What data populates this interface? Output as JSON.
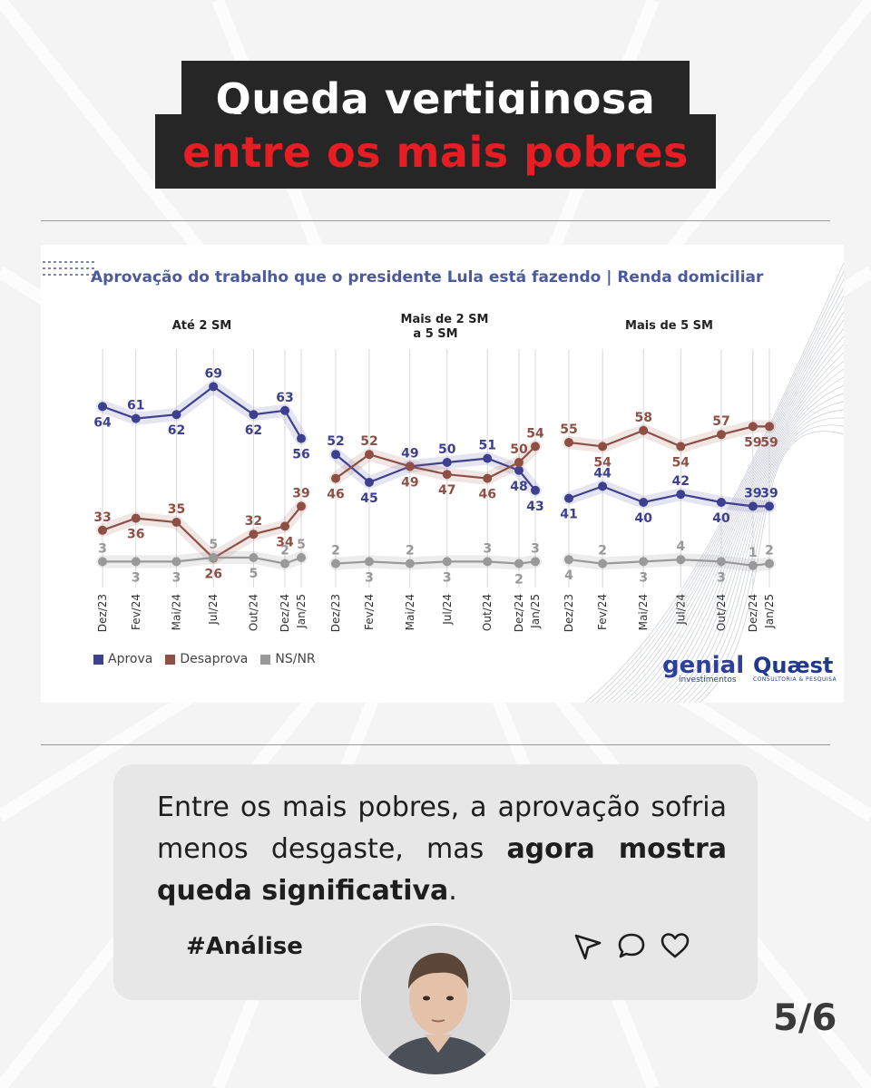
{
  "header": {
    "line1": "Queda vertiginosa",
    "line2": "entre os mais pobres"
  },
  "chart_title": "Aprovação do trabalho que o presidente Lula está fazendo | Renda domiciliar",
  "legend": [
    {
      "label": "Aprova",
      "color": "#3d3f8f"
    },
    {
      "label": "Desaprova",
      "color": "#8e4f45"
    },
    {
      "label": "NS/NR",
      "color": "#999999"
    }
  ],
  "chart_data": [
    {
      "type": "line",
      "title": "Até 2 SM",
      "x": [
        "Dez/23",
        "Fev/24",
        "Mai/24",
        "Jul/24",
        "Out/24",
        "Dez/24",
        "Jan/25"
      ],
      "series": [
        {
          "name": "Aprova",
          "values": [
            64,
            61,
            62,
            69,
            62,
            63,
            56
          ]
        },
        {
          "name": "Desaprova",
          "values": [
            33,
            36,
            35,
            26,
            32,
            34,
            39
          ]
        },
        {
          "name": "NS/NR",
          "values": [
            3,
            3,
            3,
            5,
            5,
            2,
            5
          ]
        }
      ]
    },
    {
      "type": "line",
      "title": "Mais de 2 SM a 5 SM",
      "x": [
        "Dez/23",
        "Fev/24",
        "Mai/24",
        "Jul/24",
        "Out/24",
        "Dez/24",
        "Jan/25"
      ],
      "series": [
        {
          "name": "Aprova",
          "values": [
            52,
            45,
            49,
            50,
            51,
            48,
            43
          ]
        },
        {
          "name": "Desaprova",
          "values": [
            46,
            52,
            49,
            47,
            46,
            50,
            54
          ]
        },
        {
          "name": "NS/NR",
          "values": [
            2,
            3,
            2,
            3,
            3,
            2,
            3
          ]
        }
      ]
    },
    {
      "type": "line",
      "title": "Mais de 5 SM",
      "x": [
        "Dez/23",
        "Fev/24",
        "Mai/24",
        "Jul/24",
        "Out/24",
        "Dez/24",
        "Jan/25"
      ],
      "series": [
        {
          "name": "Aprova",
          "values": [
            41,
            44,
            40,
            42,
            40,
            39,
            39
          ]
        },
        {
          "name": "Desaprova",
          "values": [
            55,
            54,
            58,
            54,
            57,
            59,
            59
          ]
        },
        {
          "name": "NS/NR",
          "values": [
            4,
            2,
            3,
            4,
            3,
            1,
            2
          ]
        }
      ]
    }
  ],
  "logos": {
    "genial": "genial",
    "genial_sub": "investimentos",
    "quaest": "Quæst",
    "quaest_sub": "CONSULTORIA & PESQUISA"
  },
  "card": {
    "text_normal": "Entre os mais pobres, a aprovação sofria menos desgaste, mas ",
    "text_bold": "agora mostra queda significativa",
    "text_end": ".",
    "hashtag": "#Análise",
    "icons": [
      "send-icon",
      "comment-icon",
      "heart-icon"
    ]
  },
  "page_number": "5/6"
}
